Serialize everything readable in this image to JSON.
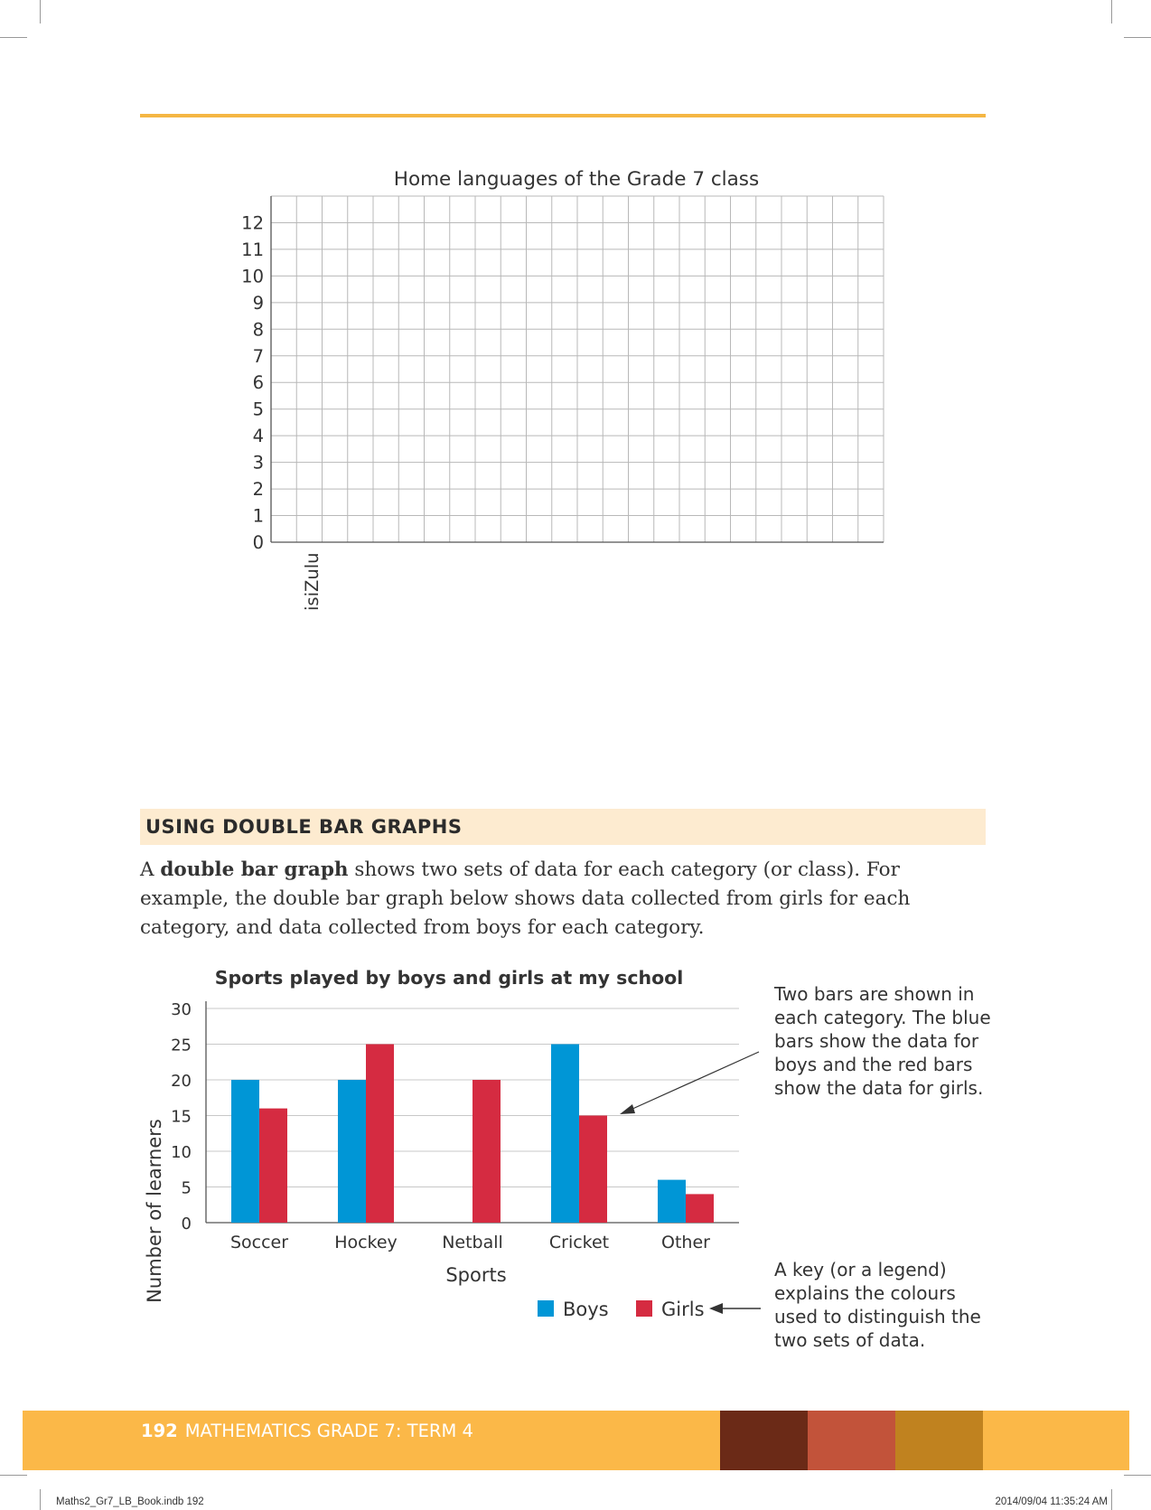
{
  "grid_chart": {
    "title": "Home languages of the Grade 7 class",
    "y_ticks": [
      "0",
      "1",
      "2",
      "3",
      "4",
      "5",
      "6",
      "7",
      "8",
      "9",
      "10",
      "11",
      "12"
    ],
    "x_label_first": "isiZulu"
  },
  "section": {
    "heading": "USING DOUBLE BAR GRAPHS",
    "intro_before": "A ",
    "intro_bold": "double bar graph",
    "intro_after": " shows two sets of data for each category (or class). For example, the double bar graph below shows data collected from girls for each category, and data collected from boys for each category."
  },
  "chart_data": {
    "type": "bar",
    "title": "Sports played by boys and girls at my school",
    "xlabel": "Sports",
    "ylabel": "Number of learners",
    "categories": [
      "Soccer",
      "Hockey",
      "Netball",
      "Cricket",
      "Other"
    ],
    "series": [
      {
        "name": "Boys",
        "values": [
          20,
          20,
          0,
          25,
          6
        ],
        "color": "#0096d6"
      },
      {
        "name": "Girls",
        "values": [
          16,
          25,
          20,
          15,
          4
        ],
        "color": "#d52b41"
      }
    ],
    "ylim": [
      0,
      30
    ],
    "yticks": [
      "0",
      "5",
      "10",
      "15",
      "20",
      "25",
      "30"
    ],
    "grid": true,
    "legend_position": "bottom-right"
  },
  "annotations": {
    "bars_note": "Two bars are shown in each category. The blue bars show the data for boys and the red bars show the data for girls.",
    "key_note": "A key (or a legend) explains the colours used to distinguish the two sets of data."
  },
  "footer": {
    "page_number": "192",
    "title": "MATHEMATICS GRADE 7: TERM 4",
    "swatches": [
      "#6b2a17",
      "#c2533a",
      "#c0821f"
    ]
  },
  "slug": {
    "file": "Maths2_Gr7_LB_Book.indb   192",
    "timestamp": "2014/09/04   11:35:24 AM"
  }
}
